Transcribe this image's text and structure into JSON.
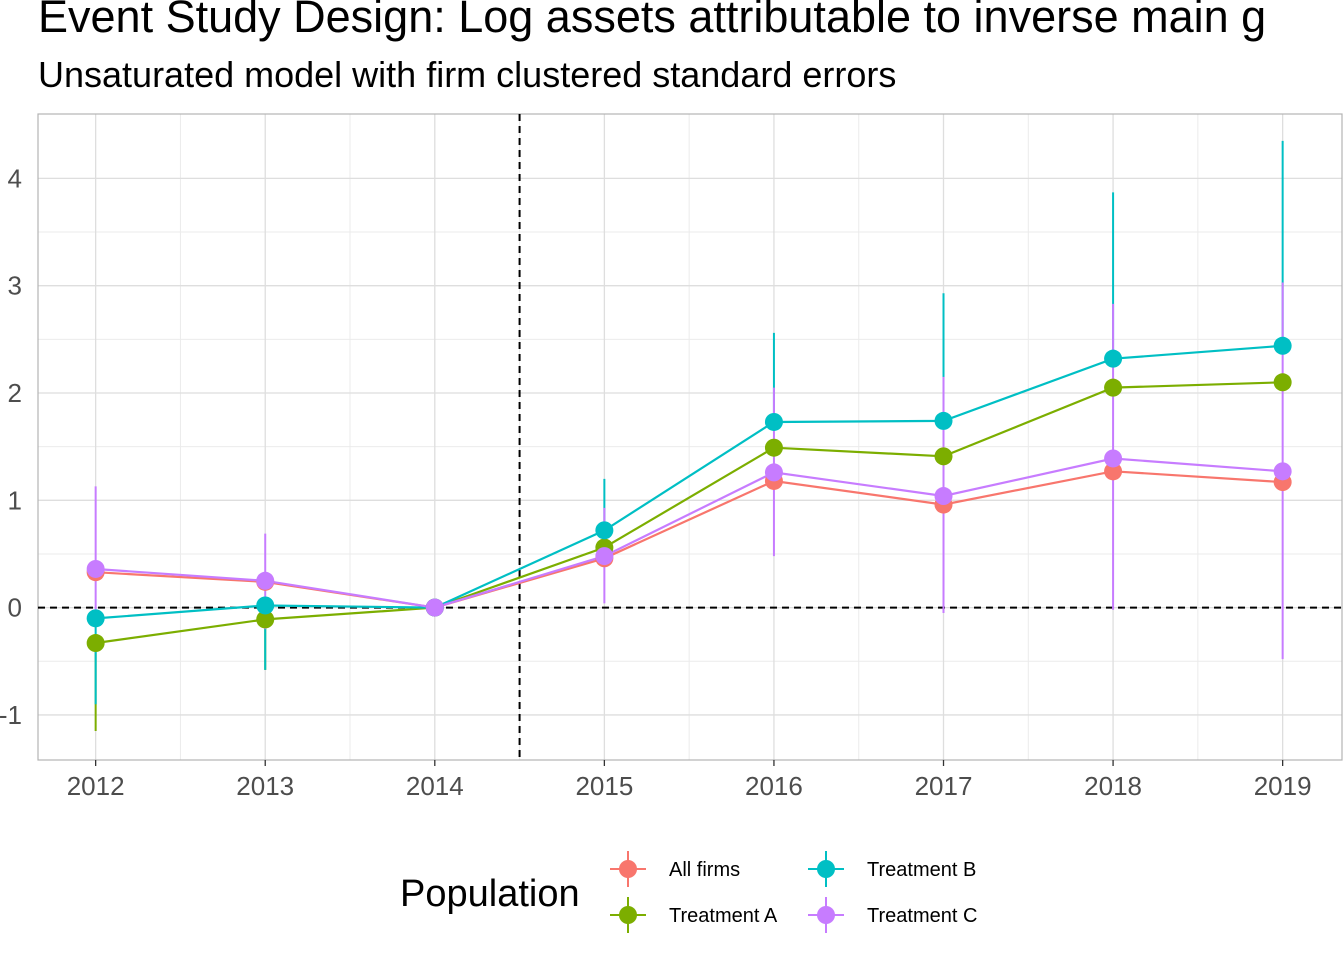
{
  "chart_data": {
    "type": "line",
    "title": "Event Study Design: Log assets attributable to inverse main g",
    "subtitle": "Unsaturated model with firm clustered standard errors",
    "xlabel": "",
    "ylabel": "",
    "x": [
      2012,
      2013,
      2014,
      2015,
      2016,
      2017,
      2018,
      2019
    ],
    "x_tick_labels": [
      "2012",
      "2013",
      "2014",
      "2015",
      "2016",
      "2017",
      "2018",
      "2019"
    ],
    "y_ticks": [
      -1,
      0,
      1,
      2,
      3,
      4
    ],
    "y_tick_labels": [
      "-1",
      "0",
      "1",
      "2",
      "3",
      "4"
    ],
    "xlim": [
      2011.66,
      2019.35
    ],
    "ylim": [
      -1.42,
      4.6
    ],
    "reference_lines": {
      "vertical_x": 2014.5,
      "horizontal_y": 0
    },
    "grid": true,
    "legend": {
      "title": "Population",
      "placement": "bottom",
      "ncol": 2
    },
    "series": [
      {
        "name": "All firms",
        "color": "#F8766D",
        "values": [
          0.33,
          0.24,
          0.0,
          0.46,
          1.18,
          0.96,
          1.27,
          1.17
        ],
        "ci_low": [
          null,
          null,
          null,
          null,
          null,
          null,
          null,
          null
        ],
        "ci_high": [
          null,
          null,
          null,
          null,
          null,
          null,
          null,
          null
        ]
      },
      {
        "name": "Treatment A",
        "color": "#7CAE00",
        "values": [
          -0.33,
          -0.11,
          0.0,
          0.56,
          1.49,
          1.41,
          2.05,
          2.1
        ],
        "ci_low": [
          -1.15,
          -0.58,
          0.0,
          null,
          null,
          null,
          null,
          null
        ],
        "ci_high": [
          null,
          null,
          0.0,
          null,
          null,
          null,
          null,
          null
        ]
      },
      {
        "name": "Treatment B",
        "color": "#00BFC4",
        "values": [
          -0.1,
          0.02,
          0.0,
          0.72,
          1.73,
          1.74,
          2.32,
          2.44
        ],
        "ci_low": [
          -0.9,
          -0.58,
          0.0,
          0.5,
          null,
          null,
          null,
          null
        ],
        "ci_high": [
          null,
          null,
          0.0,
          1.2,
          2.56,
          2.93,
          3.87,
          4.35
        ]
      },
      {
        "name": "Treatment C",
        "color": "#C77CFF",
        "values": [
          0.36,
          0.25,
          0.0,
          0.48,
          1.26,
          1.04,
          1.39,
          1.27
        ],
        "ci_low": [
          -0.05,
          -0.2,
          0.0,
          0.04,
          0.48,
          -0.05,
          -0.02,
          -0.48
        ],
        "ci_high": [
          1.13,
          0.69,
          0.0,
          0.93,
          2.05,
          2.15,
          2.83,
          3.03
        ]
      }
    ]
  }
}
